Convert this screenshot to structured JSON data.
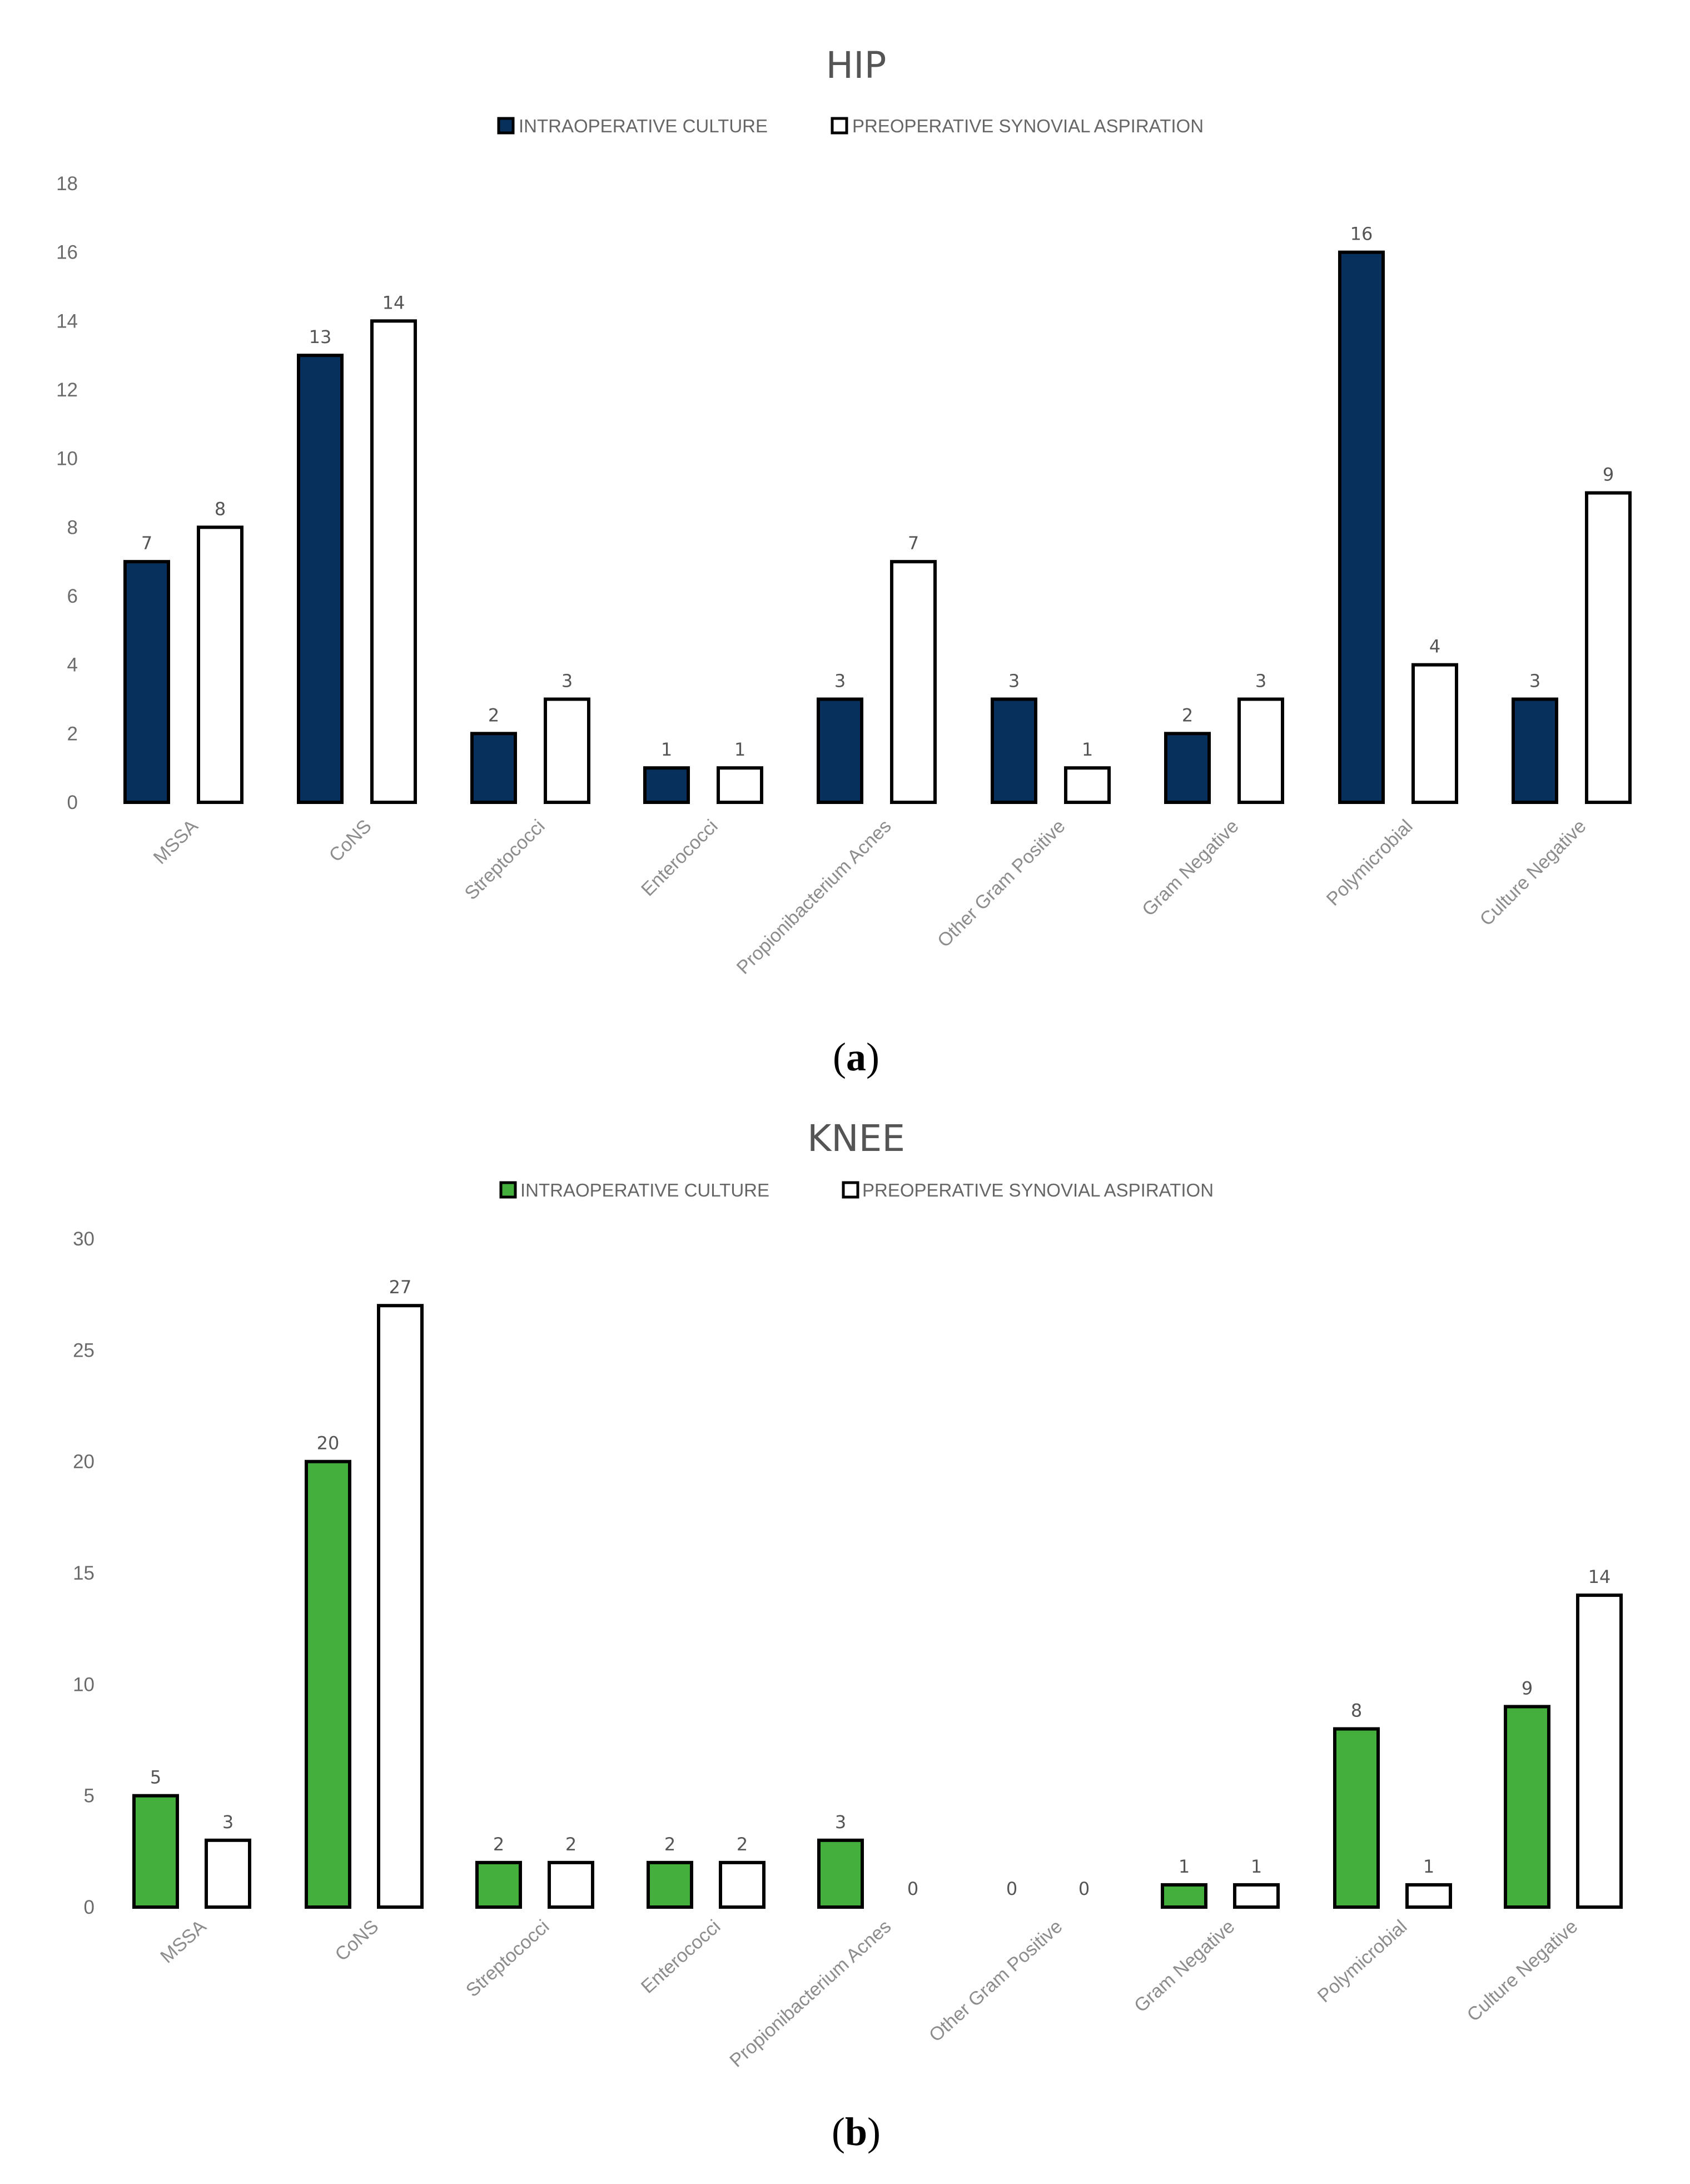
{
  "colors": {
    "hip_series1": "#08305c",
    "knee_series1": "#44af3c",
    "series2": "#ffffff",
    "outline": "#000000"
  },
  "chart_data": [
    {
      "id": "hip",
      "type": "bar",
      "title": "HIP",
      "caption_letter": "a",
      "xlabel": "",
      "ylabel": "",
      "ylim": [
        0,
        18
      ],
      "yticks": [
        0,
        2,
        4,
        6,
        8,
        10,
        12,
        14,
        16,
        18
      ],
      "grid": false,
      "legend_position": "top-center",
      "categories": [
        "MSSA",
        "CoNS",
        "Streptococci",
        "Enterococci",
        "Propionibacterium Acnes",
        "Other Gram Positive",
        "Gram Negative",
        "Polymicrobial",
        "Culture Negative"
      ],
      "series": [
        {
          "name": "INTRAOPERATIVE CULTURE",
          "color": "#08305c",
          "values": [
            7,
            13,
            2,
            1,
            3,
            3,
            2,
            16,
            3
          ]
        },
        {
          "name": "PREOPERATIVE SYNOVIAL ASPIRATION",
          "color": "#ffffff",
          "values": [
            8,
            14,
            3,
            1,
            7,
            1,
            3,
            4,
            9
          ]
        }
      ]
    },
    {
      "id": "knee",
      "type": "bar",
      "title": "KNEE",
      "caption_letter": "b",
      "xlabel": "",
      "ylabel": "",
      "ylim": [
        0,
        30
      ],
      "yticks": [
        0,
        5,
        10,
        15,
        20,
        25,
        30
      ],
      "grid": false,
      "legend_position": "top-center",
      "categories": [
        "MSSA",
        "CoNS",
        "Streptococci",
        "Enterococci",
        "Propionibacterium Acnes",
        "Other Gram Positive",
        "Gram Negative",
        "Polymicrobial",
        "Culture Negative"
      ],
      "series": [
        {
          "name": "INTRAOPERATIVE CULTURE",
          "color": "#44af3c",
          "values": [
            5,
            20,
            2,
            2,
            3,
            0,
            1,
            8,
            9
          ]
        },
        {
          "name": "PREOPERATIVE SYNOVIAL ASPIRATION",
          "color": "#ffffff",
          "values": [
            3,
            27,
            2,
            2,
            0,
            0,
            1,
            1,
            14
          ]
        }
      ]
    }
  ]
}
